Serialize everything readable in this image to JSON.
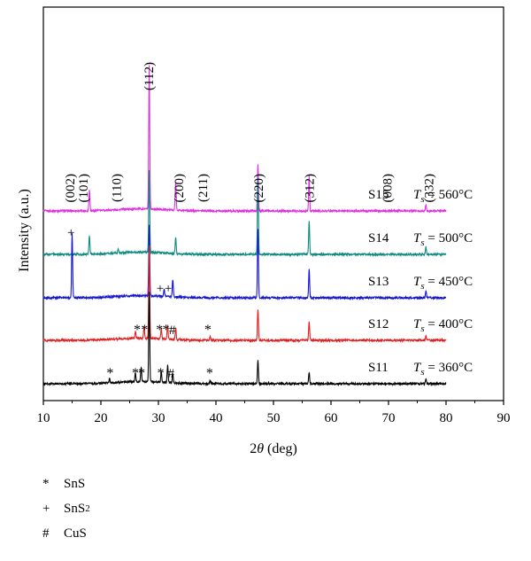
{
  "chart_data": {
    "type": "line",
    "xlabel_pre": "2",
    "xlabel_theta": "θ",
    "xlabel_post": " (deg)",
    "ylabel": "Intensity (a.u.)",
    "xlim": [
      10,
      90
    ],
    "xticks": [
      10,
      20,
      30,
      40,
      50,
      60,
      70,
      80,
      90
    ],
    "series": [
      {
        "name": "S15",
        "temp": "560",
        "color": "#e030e0",
        "peaks": [
          [
            18.0,
            0.15
          ],
          [
            28.4,
            1.0
          ],
          [
            33.0,
            0.2
          ],
          [
            47.3,
            0.33
          ],
          [
            56.2,
            0.24
          ],
          [
            76.5,
            0.04
          ]
        ]
      },
      {
        "name": "S14",
        "temp": "500",
        "color": "#0e8a80",
        "peaks": [
          [
            18.0,
            0.13
          ],
          [
            23.0,
            0.03
          ],
          [
            28.4,
            0.58
          ],
          [
            33.0,
            0.12
          ],
          [
            47.3,
            0.53
          ],
          [
            56.2,
            0.23
          ],
          [
            76.5,
            0.05
          ]
        ]
      },
      {
        "name": "S13",
        "temp": "450",
        "color": "#1515d0",
        "peaks": [
          [
            15.0,
            0.45
          ],
          [
            28.4,
            0.5
          ],
          [
            31.0,
            0.05
          ],
          [
            32.5,
            0.12
          ],
          [
            47.3,
            0.48
          ],
          [
            56.2,
            0.2
          ],
          [
            76.5,
            0.05
          ]
        ]
      },
      {
        "name": "S12",
        "temp": "400",
        "color": "#e02020",
        "peaks": [
          [
            26.0,
            0.05
          ],
          [
            27.5,
            0.08
          ],
          [
            28.4,
            0.65
          ],
          [
            30.5,
            0.07
          ],
          [
            31.6,
            0.1
          ],
          [
            33.0,
            0.08
          ],
          [
            39.0,
            0.03
          ],
          [
            47.3,
            0.22
          ],
          [
            56.2,
            0.13
          ],
          [
            76.5,
            0.03
          ]
        ]
      },
      {
        "name": "S11",
        "temp": "360",
        "color": "#000000",
        "peaks": [
          [
            21.5,
            0.03
          ],
          [
            26.0,
            0.06
          ],
          [
            27.0,
            0.1
          ],
          [
            28.4,
            0.62
          ],
          [
            30.5,
            0.07
          ],
          [
            31.6,
            0.12
          ],
          [
            32.5,
            0.06
          ],
          [
            39.0,
            0.02
          ],
          [
            47.3,
            0.17
          ],
          [
            56.2,
            0.08
          ],
          [
            76.5,
            0.03
          ]
        ]
      }
    ],
    "series_temp_prefix": "T",
    "series_temp_sub": "s",
    "series_temp_eq": " = ",
    "series_temp_unit": "°C",
    "hkl_labels": [
      {
        "text": "(002)",
        "x": 14.6
      },
      {
        "text": "(101)",
        "x": 16.9
      },
      {
        "text": "(110)",
        "x": 22.7
      },
      {
        "text": "(112)",
        "x": 28.3
      },
      {
        "text": "(200)",
        "x": 33.5
      },
      {
        "text": "(211)",
        "x": 37.7
      },
      {
        "text": "(220)",
        "x": 47.4
      },
      {
        "text": "(312)",
        "x": 56.2
      },
      {
        "text": "(008)",
        "x": 69.8
      },
      {
        "text": "(332)",
        "x": 77.0
      }
    ],
    "phase_marks": [
      {
        "sym": "+",
        "x": 14.8,
        "series": "S14"
      },
      {
        "sym": "+",
        "x": 30.3,
        "series": "S13"
      },
      {
        "sym": "+",
        "x": 31.7,
        "series": "S13"
      },
      {
        "sym": "*",
        "x": 26.3,
        "series": "S12"
      },
      {
        "sym": "*",
        "x": 27.6,
        "series": "S12"
      },
      {
        "sym": "*",
        "x": 30.2,
        "series": "S12"
      },
      {
        "sym": "*",
        "x": 31.3,
        "series": "S12"
      },
      {
        "sym": "#",
        "x": 32.4,
        "series": "S12"
      },
      {
        "sym": "*",
        "x": 38.6,
        "series": "S12"
      },
      {
        "sym": "*",
        "x": 21.6,
        "series": "S11"
      },
      {
        "sym": "*",
        "x": 26.0,
        "series": "S11"
      },
      {
        "sym": "*",
        "x": 27.1,
        "series": "S11"
      },
      {
        "sym": "*",
        "x": 30.4,
        "series": "S11"
      },
      {
        "sym": "#",
        "x": 32.2,
        "series": "S11"
      },
      {
        "sym": "*",
        "x": 38.9,
        "series": "S11"
      }
    ],
    "legend": [
      {
        "sym": "*",
        "label": "SnS",
        "sub": ""
      },
      {
        "sym": "+",
        "label": "SnS",
        "sub": "2"
      },
      {
        "sym": "#",
        "label": "CuS",
        "sub": ""
      }
    ]
  }
}
